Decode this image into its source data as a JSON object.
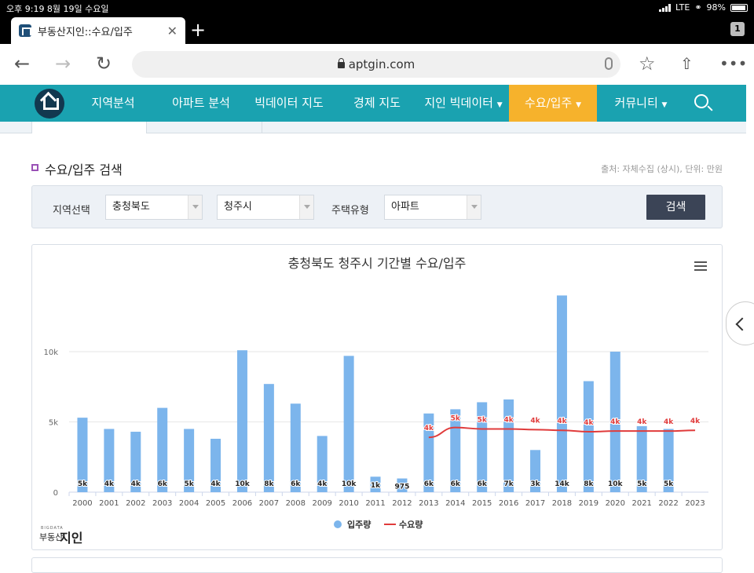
{
  "status_bar": {
    "left": "오후 9:19   8월 19일 수요일",
    "network": "LTE",
    "battery": "98%"
  },
  "browser": {
    "tab_title": "부동산지인::수요/입주",
    "tab_count": "1",
    "url": "aptgin.com"
  },
  "nav": {
    "items": [
      "지역분석",
      "아파트 분석",
      "빅데이터 지도",
      "경제 지도",
      "지인 빅데이터",
      "수요/입주",
      "커뮤니티"
    ],
    "active": "수요/입주"
  },
  "section": {
    "title": "수요/입주 검색",
    "source": "출처: 자체수집 (상시), 단위: 만원"
  },
  "filter": {
    "region_label": "지역선택",
    "province": "충청북도",
    "city": "청주시",
    "type_label": "주택유형",
    "housing_type": "아파트",
    "search_button": "검색"
  },
  "chart_data": {
    "type": "bar",
    "title": "충청북도 청주시 기간별 수요/입주",
    "categories": [
      "2000",
      "2001",
      "2002",
      "2003",
      "2004",
      "2005",
      "2006",
      "2007",
      "2008",
      "2009",
      "2010",
      "2011",
      "2012",
      "2013",
      "2014",
      "2015",
      "2016",
      "2017",
      "2018",
      "2019",
      "2020",
      "2021",
      "2022",
      "2023"
    ],
    "y_ticks": [
      "0",
      "5k",
      "10k"
    ],
    "ylim": [
      0,
      13800
    ],
    "series": [
      {
        "name": "입주량",
        "type": "bar",
        "color": "#7cb5ec",
        "values": [
          5300,
          4500,
          4300,
          6000,
          4500,
          3800,
          10100,
          7700,
          6300,
          4000,
          9700,
          1100,
          975,
          5600,
          5900,
          6400,
          6600,
          3000,
          14000,
          7900,
          10000,
          4700,
          4500,
          0
        ],
        "labels": [
          "5k",
          "4k",
          "4k",
          "6k",
          "5k",
          "4k",
          "10k",
          "8k",
          "6k",
          "4k",
          "10k",
          "1k",
          "975",
          "6k",
          "6k",
          "6k",
          "7k",
          "3k",
          "14k",
          "8k",
          "10k",
          "5k",
          "5k",
          ""
        ]
      },
      {
        "name": "수요량",
        "type": "line",
        "color": "#e03b3b",
        "values": [
          null,
          null,
          null,
          null,
          null,
          null,
          null,
          null,
          null,
          null,
          null,
          null,
          null,
          3900,
          4600,
          4500,
          4500,
          4450,
          4400,
          4300,
          4350,
          4350,
          4350,
          4400
        ],
        "labels": [
          "",
          "",
          "",
          "",
          "",
          "",
          "",
          "",
          "",
          "",
          "",
          "",
          "",
          "4k",
          "5k",
          "5k",
          "4k",
          "4k",
          "4k",
          "4k",
          "4k",
          "4k",
          "4k",
          "4k"
        ]
      }
    ],
    "legend": [
      "입주량",
      "수요량"
    ],
    "legend_position": "bottom-center"
  },
  "footer": {
    "logo_small": "BIGDATA",
    "logo_name": "부동산",
    "logo_big": "지인"
  }
}
